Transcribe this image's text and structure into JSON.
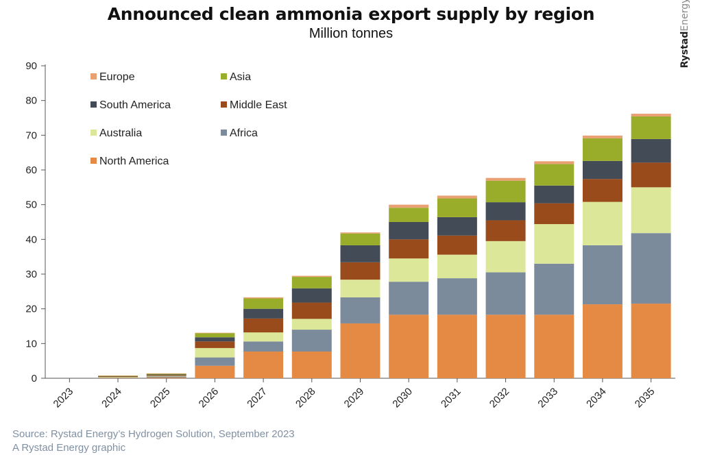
{
  "title": "Announced clean ammonia export supply by region",
  "subtitle": "Million tonnes",
  "brand": "RystadEnergy",
  "brand_bold": "Rystad",
  "brand_light": "Energy",
  "source_line1": "Source: Rystad Energy’s Hydrogen Solution, September 2023",
  "source_line2": "A Rystad Energy graphic",
  "chart_data": {
    "type": "bar",
    "stacked": true,
    "categories": [
      "2023",
      "2024",
      "2025",
      "2026",
      "2027",
      "2028",
      "2029",
      "2030",
      "2031",
      "2032",
      "2033",
      "2034",
      "2035"
    ],
    "ylim": [
      0,
      90
    ],
    "yticks": [
      0,
      10,
      20,
      30,
      40,
      50,
      60,
      70,
      80,
      90
    ],
    "grid": false,
    "legend_position": "top-left",
    "legend_order": [
      "Europe",
      "Asia",
      "South America",
      "Middle East",
      "Australia",
      "Africa",
      "North America"
    ],
    "series": [
      {
        "name": "North America",
        "color": "#e58a45",
        "values": [
          0,
          0.1,
          0.2,
          3.6,
          7.7,
          7.7,
          15.8,
          18.3,
          18.3,
          18.3,
          18.3,
          21.3,
          21.5
        ]
      },
      {
        "name": "Africa",
        "color": "#7c8b9b",
        "values": [
          0,
          0.1,
          0.3,
          2.4,
          2.9,
          6.3,
          7.5,
          9.5,
          10.5,
          12.2,
          14.7,
          17.0,
          20.3
        ]
      },
      {
        "name": "Australia",
        "color": "#dde79a",
        "values": [
          0,
          0.2,
          0.2,
          2.7,
          2.6,
          3.1,
          5.1,
          6.7,
          6.8,
          9.0,
          11.4,
          12.5,
          13.2
        ]
      },
      {
        "name": "Middle East",
        "color": "#9a4b1c",
        "values": [
          0,
          0.1,
          0.2,
          1.9,
          4.0,
          4.7,
          5.0,
          5.5,
          5.5,
          6.0,
          6.0,
          6.6,
          7.1
        ]
      },
      {
        "name": "South America",
        "color": "#434b57",
        "values": [
          0,
          0.1,
          0.2,
          1.2,
          2.8,
          4.1,
          4.9,
          5.0,
          5.3,
          5.2,
          5.1,
          5.2,
          6.8
        ]
      },
      {
        "name": "Asia",
        "color": "#9aad2a",
        "values": [
          0,
          0.1,
          0.2,
          1.2,
          3.0,
          3.3,
          3.4,
          4.1,
          5.4,
          6.2,
          6.2,
          6.5,
          6.5
        ]
      },
      {
        "name": "Europe",
        "color": "#e9a072",
        "values": [
          0,
          0.1,
          0.1,
          0.1,
          0.3,
          0.3,
          0.3,
          0.9,
          0.8,
          0.8,
          0.8,
          0.8,
          0.8
        ]
      }
    ]
  }
}
